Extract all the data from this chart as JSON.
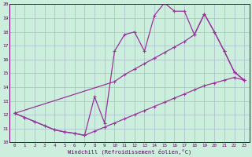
{
  "title": "",
  "xlabel": "Windchill (Refroidissement éolien,°C)",
  "bg_color": "#cceedd",
  "grid_color": "#aabbcc",
  "line_color": "#993399",
  "xlim": [
    -0.5,
    23.5
  ],
  "ylim": [
    10,
    20
  ],
  "xticks": [
    0,
    1,
    2,
    3,
    4,
    5,
    6,
    7,
    8,
    9,
    10,
    11,
    12,
    13,
    14,
    15,
    16,
    17,
    18,
    19,
    20,
    21,
    22,
    23
  ],
  "yticks": [
    10,
    11,
    12,
    13,
    14,
    15,
    16,
    17,
    18,
    19,
    20
  ],
  "series": [
    {
      "x": [
        0,
        1,
        2,
        3,
        4,
        5,
        6,
        7,
        8,
        9,
        10,
        11,
        12,
        13,
        14,
        15,
        16,
        17,
        18,
        19,
        20,
        21,
        22,
        23
      ],
      "y": [
        12.1,
        11.8,
        11.5,
        11.2,
        10.9,
        10.75,
        10.65,
        10.5,
        10.8,
        11.1,
        11.4,
        11.7,
        12.0,
        12.3,
        12.6,
        12.9,
        13.2,
        13.5,
        13.8,
        14.1,
        14.3,
        14.5,
        14.7,
        14.5
      ]
    },
    {
      "x": [
        0,
        1,
        2,
        3,
        4,
        5,
        6,
        7,
        8,
        9,
        10,
        11,
        12,
        13,
        14,
        15,
        16,
        17,
        18,
        19,
        20,
        21,
        22,
        23
      ],
      "y": [
        12.1,
        11.8,
        11.5,
        11.2,
        10.9,
        10.75,
        10.65,
        10.5,
        13.3,
        11.4,
        16.6,
        17.8,
        18.0,
        16.6,
        19.2,
        20.1,
        19.5,
        19.5,
        17.8,
        19.3,
        18.0,
        16.6,
        15.1,
        14.5
      ]
    },
    {
      "x": [
        0,
        10,
        11,
        12,
        13,
        14,
        15,
        16,
        17,
        18,
        19,
        20,
        21,
        22,
        23
      ],
      "y": [
        12.1,
        14.4,
        14.9,
        15.3,
        15.7,
        16.1,
        16.5,
        16.9,
        17.3,
        17.8,
        19.3,
        18.0,
        16.6,
        15.1,
        14.5
      ]
    }
  ]
}
